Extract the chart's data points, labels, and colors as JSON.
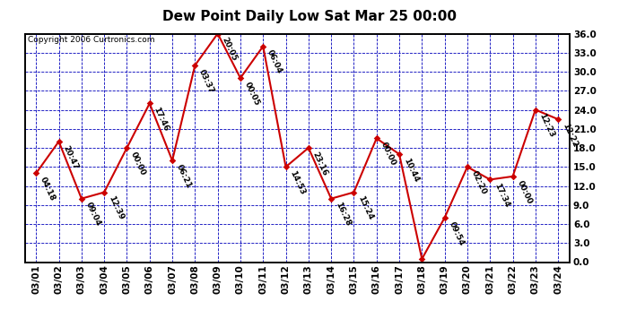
{
  "title": "Dew Point Daily Low Sat Mar 25 00:00",
  "copyright": "Copyright 2006 Curtronics.com",
  "dates": [
    "03/01",
    "03/02",
    "03/03",
    "03/04",
    "03/05",
    "03/06",
    "03/07",
    "03/08",
    "03/09",
    "03/10",
    "03/11",
    "03/12",
    "03/13",
    "03/14",
    "03/15",
    "03/16",
    "03/17",
    "03/18",
    "03/19",
    "03/20",
    "03/21",
    "03/22",
    "03/23",
    "03/24"
  ],
  "values": [
    14.0,
    19.0,
    10.0,
    11.0,
    18.0,
    25.0,
    16.0,
    31.0,
    36.0,
    29.0,
    34.0,
    15.0,
    18.0,
    10.0,
    11.0,
    19.5,
    17.0,
    0.5,
    7.0,
    15.0,
    13.0,
    13.5,
    24.0,
    22.5
  ],
  "labels": [
    "04:18",
    "20:47",
    "09:04",
    "12:39",
    "00:00",
    "17:46",
    "06:21",
    "03:37",
    "20:05",
    "00:05",
    "06:04",
    "14:53",
    "23:16",
    "16:28",
    "15:24",
    "00:00",
    "10:44",
    "",
    "09:54",
    "02:20",
    "17:34",
    "00:00",
    "12:23",
    "12:22"
  ],
  "line_color": "#cc0000",
  "marker_color": "#cc0000",
  "bg_color": "#ffffff",
  "plot_bg_color": "#ffffff",
  "grid_color": "#0000bb",
  "title_color": "#000000",
  "label_color": "#000000",
  "border_color": "#000000",
  "ylim": [
    0.0,
    36.0
  ],
  "ytick_values": [
    0.0,
    3.0,
    6.0,
    9.0,
    12.0,
    15.0,
    18.0,
    21.0,
    24.0,
    27.0,
    30.0,
    33.0,
    36.0
  ],
  "ytick_labels": [
    "0.0",
    "3.0",
    "6.0",
    "9.0",
    "12.0",
    "15.0",
    "18.0",
    "21.0",
    "24.0",
    "27.0",
    "30.0",
    "33.0",
    "36.0"
  ],
  "title_fontsize": 11,
  "label_fontsize": 6.5,
  "tick_fontsize": 7.5,
  "copyright_fontsize": 6.5,
  "linewidth": 1.5,
  "marker_size": 15
}
